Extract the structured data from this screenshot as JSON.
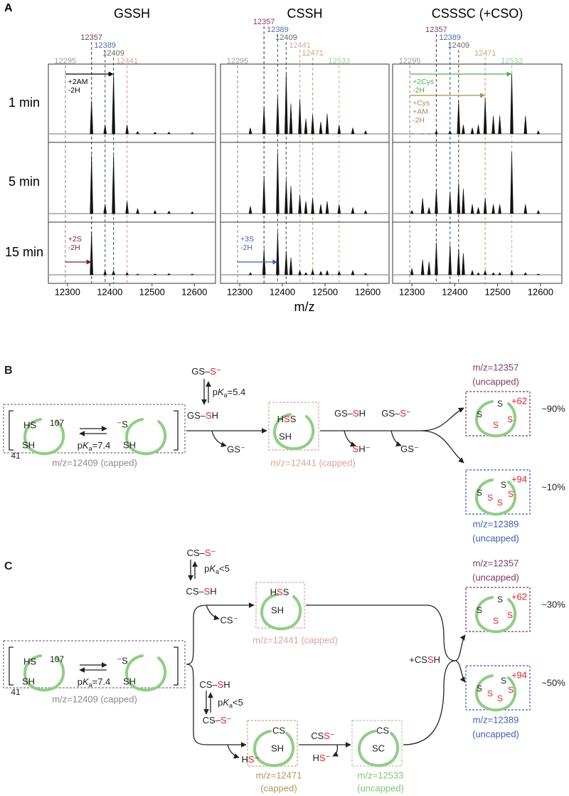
{
  "panel_a": {
    "label": "A",
    "x_label": "m/z",
    "row_labels": [
      "1 min",
      "5 min",
      "15 min"
    ],
    "xlim": [
      12255,
      12650
    ],
    "xticks": [
      12300,
      12400,
      12500,
      12600
    ],
    "columns": [
      {
        "title": "GSSH",
        "markers": [
          {
            "value": 12295,
            "color": "#9a9a9a"
          },
          {
            "value": 12357,
            "color": "#7d3b5e"
          },
          {
            "value": 12389,
            "color": "#4a6db0"
          },
          {
            "value": 12409,
            "color": "#666666"
          },
          {
            "value": 12441,
            "color": "#d9a49c"
          }
        ],
        "peak_mz": [
          12357,
          12389,
          12409,
          12441,
          12466,
          12507,
          12540,
          12595
        ],
        "rows": [
          {
            "heights": [
              0.55,
              0.15,
              1.0,
              0.15,
              0.04,
              0.03,
              0.03,
              0.02
            ],
            "annotations": [
              {
                "lines": [
                  "+2AM",
                  "-2H"
                ],
                "from": 12295,
                "to": 12409,
                "color": "#000000"
              }
            ]
          },
          {
            "heights": [
              0.95,
              0.15,
              0.95,
              0.2,
              0.08,
              0.05,
              0.04,
              0.03
            ],
            "annotations": []
          },
          {
            "heights": [
              1.0,
              0.1,
              0.1,
              0.05,
              0.02,
              0.02,
              0.03,
              0.02
            ],
            "annotations": [
              {
                "lines": [
                  "+2S",
                  "-2H"
                ],
                "from": 12295,
                "to": 12357,
                "color": "#7d2030"
              }
            ]
          }
        ]
      },
      {
        "title": "CSSH",
        "markers": [
          {
            "value": 12295,
            "color": "#9a9a9a"
          },
          {
            "value": 12357,
            "color": "#7d3b5e"
          },
          {
            "value": 12389,
            "color": "#4a6db0"
          },
          {
            "value": 12409,
            "color": "#666666"
          },
          {
            "value": 12441,
            "color": "#d9a49c"
          },
          {
            "value": 12471,
            "color": "#c9a77a"
          },
          {
            "value": 12533,
            "color": "#9fd49a"
          }
        ],
        "peak_mz": [
          12325,
          12357,
          12389,
          12409,
          12420,
          12441,
          12455,
          12471,
          12490,
          12505,
          12533,
          12565,
          12595
        ],
        "rows": [
          {
            "heights": [
              0.1,
              0.45,
              0.62,
              1.0,
              0.5,
              0.58,
              0.25,
              0.32,
              0.2,
              0.33,
              0.15,
              0.1,
              0.05
            ],
            "annotations": []
          },
          {
            "heights": [
              0.12,
              0.6,
              1.0,
              0.55,
              0.45,
              0.3,
              0.2,
              0.25,
              0.15,
              0.2,
              0.15,
              0.1,
              0.05
            ],
            "annotations": []
          },
          {
            "heights": [
              0.05,
              0.6,
              1.0,
              0.55,
              0.4,
              0.1,
              0.05,
              0.12,
              0.08,
              0.1,
              0.08,
              0.1,
              0.04
            ],
            "annotations": [
              {
                "lines": [
                  "+3S",
                  "-2H"
                ],
                "from": 12295,
                "to": 12389,
                "color": "#3d62b0"
              }
            ]
          }
        ]
      },
      {
        "title": "CSSSC (+CSO)",
        "markers": [
          {
            "value": 12295,
            "color": "#9a9a9a"
          },
          {
            "value": 12357,
            "color": "#7d3b5e"
          },
          {
            "value": 12389,
            "color": "#4a6db0"
          },
          {
            "value": 12409,
            "color": "#666666"
          },
          {
            "value": 12471,
            "color": "#c9a77a"
          },
          {
            "value": 12533,
            "color": "#9fd49a"
          }
        ],
        "peak_mz": [
          12300,
          12325,
          12340,
          12357,
          12389,
          12409,
          12420,
          12441,
          12455,
          12471,
          12490,
          12505,
          12533,
          12565,
          12595
        ],
        "rows": [
          {
            "heights": [
              0,
              0,
              0,
              0.05,
              0.05,
              0.55,
              0.15,
              0.1,
              0.15,
              0.6,
              0.3,
              0.3,
              1.0,
              0.3,
              0.05
            ],
            "annotations": [
              {
                "lines": [
                  "+2Cys",
                  "-2H"
                ],
                "from": 12295,
                "to": 12533,
                "color": "#4caf50"
              },
              {
                "lines": [
                  "+Cys",
                  "+AM",
                  "-2H"
                ],
                "from": 12295,
                "to": 12471,
                "color": "#b08a55"
              }
            ]
          },
          {
            "heights": [
              0.05,
              0.25,
              0.1,
              0.4,
              0.35,
              0.5,
              0.4,
              0.15,
              0.1,
              0.25,
              0.15,
              0.15,
              1.0,
              0.15,
              0.05
            ],
            "annotations": []
          },
          {
            "heights": [
              0.15,
              0.35,
              0.3,
              0.75,
              0.7,
              0.6,
              0.5,
              0.1,
              0.05,
              0.1,
              0.05,
              0.05,
              0.1,
              0.05,
              0.02
            ],
            "annotations": []
          }
        ]
      }
    ]
  },
  "panel_b": {
    "label": "B",
    "reactant": {
      "hs": "HS",
      "site_a": "107",
      "sh": "SH",
      "site_b": "41",
      "thiolate": "⁻S",
      "sh_right": "SH",
      "pka": [
        "p",
        "K",
        "a",
        "=7.4"
      ],
      "caption": "m/z=12409 (capped)"
    },
    "donor_anion": [
      "GS–",
      "S",
      "⁻"
    ],
    "donor_pka": [
      "p",
      "K",
      "a",
      "=5.4"
    ],
    "donor": [
      "GS–",
      "S",
      "H"
    ],
    "leaving": "GS⁻",
    "intermediate": {
      "top": [
        "H",
        "S",
        "S"
      ],
      "sh": "SH",
      "caption": "m/z=12441 (capped)"
    },
    "second_donors": [
      [
        "GS–",
        "S",
        "H"
      ],
      [
        "GS–",
        "S",
        "⁻"
      ]
    ],
    "second_leaving": [
      [
        "S",
        "H⁻"
      ],
      [
        "GS⁻"
      ]
    ],
    "products": [
      {
        "caption": [
          "m/z=12357",
          "(uncapped)"
        ],
        "shift": "+62",
        "share": "~90%",
        "atoms": [
          "S",
          "S",
          "S",
          "S"
        ]
      },
      {
        "caption": [
          "m/z=12389",
          "(uncapped)"
        ],
        "shift": "+94",
        "share": "~10%",
        "atoms": [
          "S",
          "S",
          "S",
          "S",
          "S"
        ]
      }
    ]
  },
  "panel_c": {
    "label": "C",
    "reactant": {
      "hs": "HS",
      "site_a": "107",
      "sh": "SH",
      "site_b": "41",
      "thiolate": "⁻S",
      "sh_right": "SH",
      "pka": [
        "p",
        "K",
        "a",
        "=7.4"
      ],
      "caption": "m/z=12409 (capped)"
    },
    "upper": {
      "donor_anion": [
        "CS–",
        "S",
        "⁻"
      ],
      "pka": [
        "p",
        "K",
        "a",
        "<5"
      ],
      "donor": [
        "CS–",
        "S",
        "H"
      ],
      "leaving": "CS⁻",
      "intermediate": {
        "top": [
          "H",
          "S",
          "S"
        ],
        "sh": "SH",
        "caption": "m/z=12441 (capped)"
      }
    },
    "lower": {
      "donor": [
        "CS–",
        "S",
        "H"
      ],
      "pka": [
        "p",
        "K",
        "a",
        "<5"
      ],
      "donor_anion": [
        "CS–",
        "S",
        "⁻"
      ],
      "leaving": [
        "H",
        "S",
        "⁻"
      ],
      "intermediate": {
        "top": "CS",
        "sh": "SH",
        "caption": [
          "m/z=12471",
          "(capped)"
        ]
      },
      "second_donor": [
        "CS",
        "S",
        "⁻"
      ],
      "second_leaving": [
        "H",
        "S",
        "⁻"
      ],
      "product": {
        "top": "CS",
        "sc": "SC",
        "caption": [
          "m/z=12533",
          "(uncapped)"
        ]
      }
    },
    "merge_reagent": [
      "+CS",
      "S",
      "H"
    ],
    "products": [
      {
        "caption": [
          "m/z=12357",
          "(uncapped)"
        ],
        "shift": "+62",
        "share": "~30%",
        "atoms": [
          "S",
          "S",
          "S",
          "S"
        ]
      },
      {
        "caption": [
          "m/z=12389",
          "(uncapped)"
        ],
        "shift": "+94",
        "share": "~50%",
        "atoms": [
          "S",
          "S",
          "S",
          "S",
          "S"
        ]
      }
    ]
  }
}
